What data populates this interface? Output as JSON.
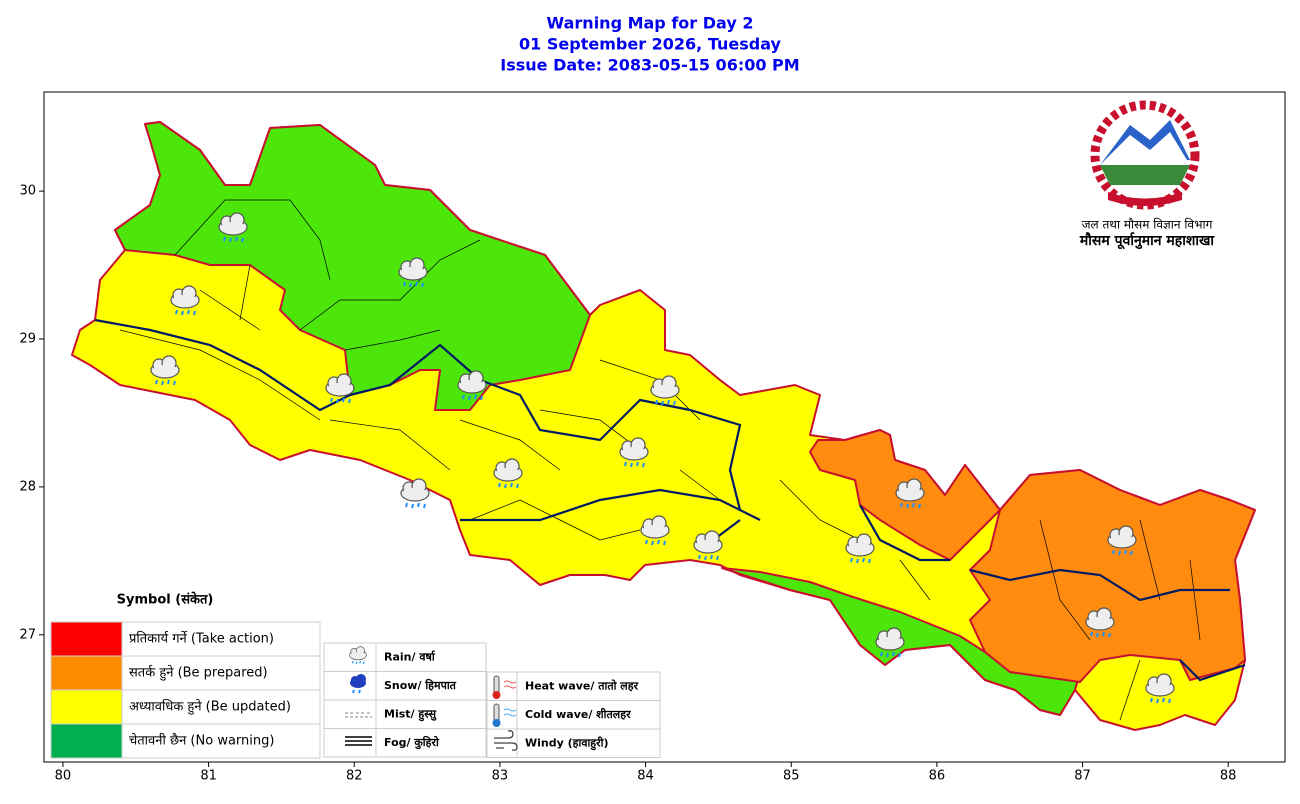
{
  "title": [
    "Warning Map for Day 2",
    "01 September 2026, Tuesday",
    "Issue Date: 2083-05-15 06:00 PM"
  ],
  "map": {
    "xlim": [
      79.87,
      88.39
    ],
    "ylim": [
      26.14,
      30.67
    ],
    "xticks": [
      80,
      81,
      82,
      83,
      84,
      85,
      86,
      87,
      88
    ],
    "yticks": [
      27,
      28,
      29,
      30
    ]
  },
  "logo": {
    "line1": "जल तथा मौसम विज्ञान विभाग",
    "line2": "मौसम पूर्वानुमान महाशाखा"
  },
  "legend": {
    "title": "Symbol (संकेत)",
    "levels": [
      {
        "label": "प्रतिकार्य गर्ने (Take action)",
        "color": "#ff0000"
      },
      {
        "label": "सतर्क हुने (Be prepared)",
        "color": "#ff8c00"
      },
      {
        "label": "अध्यावधिक हुने (Be updated)",
        "color": "#ffff00"
      },
      {
        "label": "चेतावनी छैन (No warning)",
        "color": "#00b050"
      }
    ],
    "symbols": [
      "Rain/ वर्षा",
      "Snow/ हिमपात",
      "Mist/ हुस्सु",
      "Fog/ कुहिरो",
      "Heat wave/ तातो लहर",
      "Cold wave/ शीतलहर",
      "Windy (हावाहुरी)"
    ]
  }
}
